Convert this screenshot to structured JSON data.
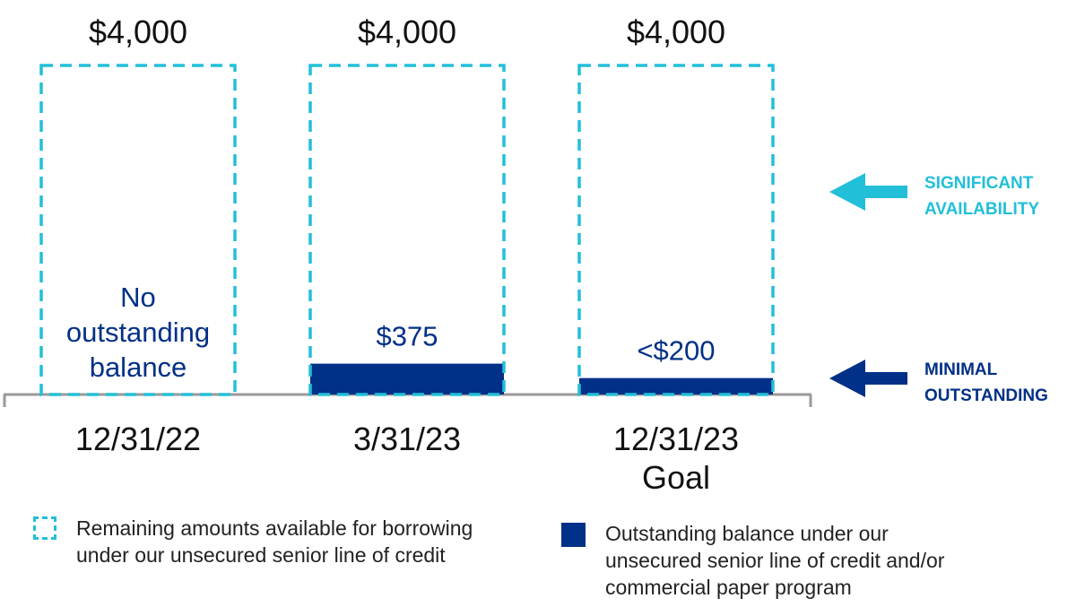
{
  "colors": {
    "available": "#22bfd8",
    "outstanding": "#003087",
    "text": "#111111",
    "axis": "#9a9a9a"
  },
  "chart_data": {
    "type": "bar",
    "categories": [
      "12/31/22",
      "3/31/23",
      "12/31/23"
    ],
    "category_sublabels": [
      "",
      "",
      "Goal"
    ],
    "series": [
      {
        "name": "Remaining amounts available for borrowing under our unsecured senior line of credit",
        "style": "dashed-outline",
        "values": [
          4000,
          3625,
          3800
        ]
      },
      {
        "name": "Outstanding balance under our unsecured senior line of credit and/or commercial paper program",
        "style": "solid",
        "values": [
          0,
          375,
          200
        ]
      }
    ],
    "total_labels": [
      "$4,000",
      "$4,000",
      "$4,000"
    ],
    "outstanding_labels": [
      "No outstanding balance",
      "$375",
      "<$200"
    ],
    "outstanding_label_lines": [
      [
        "No",
        "outstanding",
        "balance"
      ],
      [
        "$375"
      ],
      [
        "<$200"
      ]
    ],
    "annotations": [
      {
        "lines": [
          "SIGNIFICANT",
          "AVAILABILITY"
        ],
        "arrow": "left",
        "color": "#22bfd8"
      },
      {
        "lines": [
          "MINIMAL",
          "OUTSTANDING"
        ],
        "arrow": "left",
        "color": "#003087"
      }
    ],
    "ylim": [
      0,
      4000
    ],
    "grid": false,
    "legend_position": "bottom"
  },
  "legend": {
    "available_lines": [
      "Remaining amounts available for borrowing",
      "under our unsecured senior line of credit"
    ],
    "outstanding_lines": [
      "Outstanding balance under our",
      "unsecured senior line of credit and/or",
      "commercial paper program"
    ]
  }
}
